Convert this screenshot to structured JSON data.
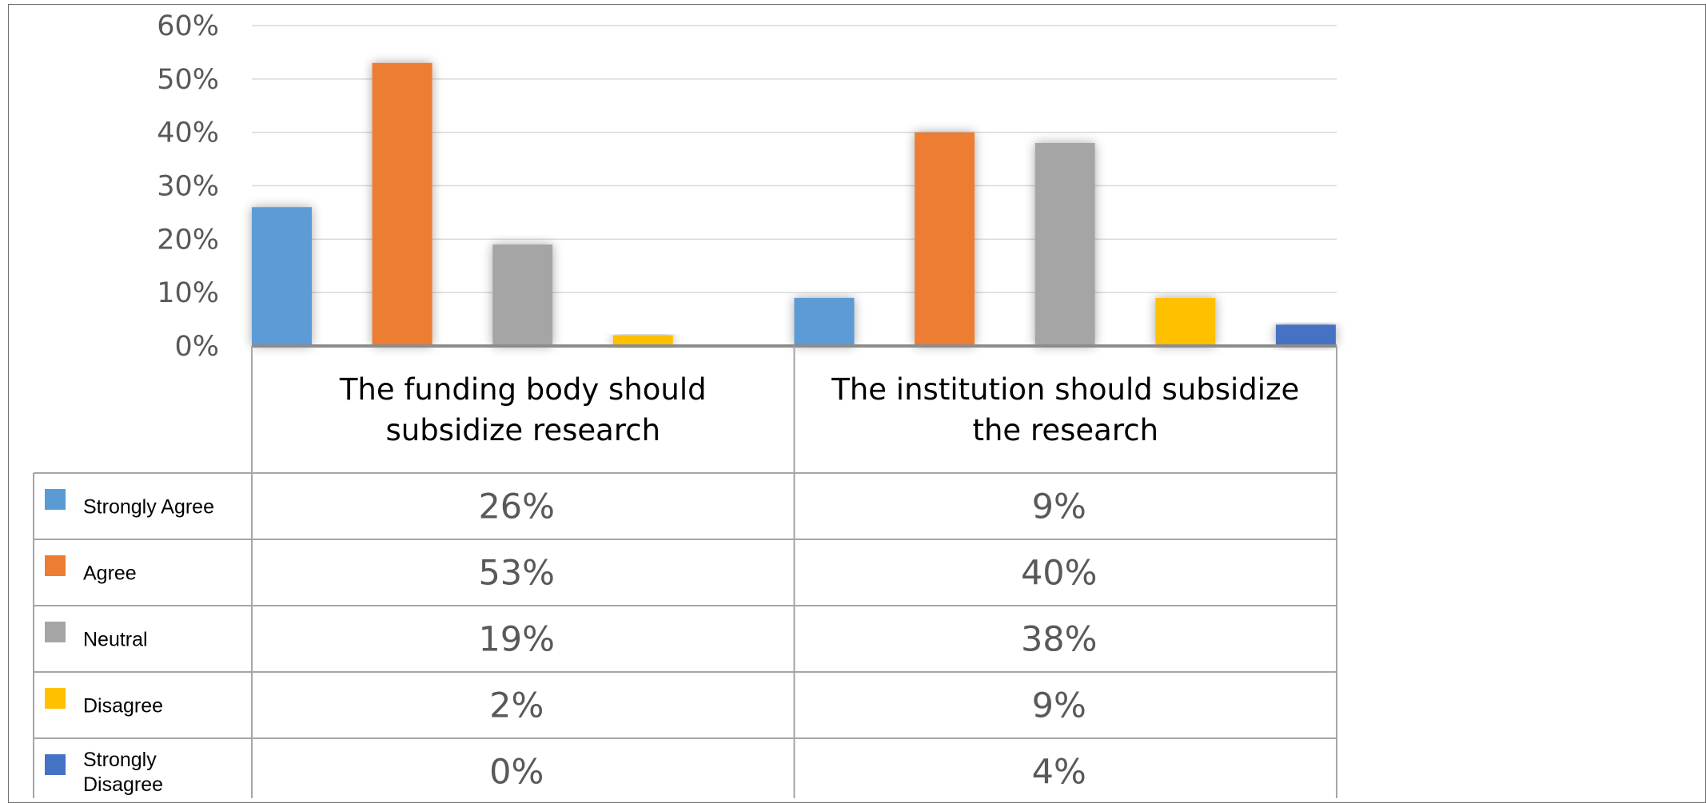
{
  "chart_data": {
    "type": "bar",
    "categories": [
      [
        "The funding body should",
        "subsidize research"
      ],
      [
        "The institution should subsidize",
        "the research"
      ]
    ],
    "series": [
      {
        "name": [
          "Strongly Agree"
        ],
        "color": "#5B9BD5",
        "values": [
          26,
          9
        ],
        "labels": [
          "26%",
          "9%"
        ]
      },
      {
        "name": [
          "Agree"
        ],
        "color": "#ED7D31",
        "values": [
          53,
          40
        ],
        "labels": [
          "53%",
          "40%"
        ]
      },
      {
        "name": [
          "Neutral"
        ],
        "color": "#A5A5A5",
        "values": [
          19,
          38
        ],
        "labels": [
          "19%",
          "38%"
        ]
      },
      {
        "name": [
          "Disagree"
        ],
        "color": "#FFC000",
        "values": [
          2,
          9
        ],
        "labels": [
          "2%",
          "9%"
        ]
      },
      {
        "name": [
          "Strongly",
          "Disagree"
        ],
        "color": "#4472C4",
        "values": [
          0,
          4
        ],
        "labels": [
          "0%",
          "4%"
        ]
      }
    ],
    "yticks": [
      "0%",
      "10%",
      "20%",
      "30%",
      "40%",
      "50%",
      "60%"
    ],
    "ylim": [
      0,
      60
    ],
    "grid": true,
    "legend": "data-table-left",
    "data_table": true
  }
}
